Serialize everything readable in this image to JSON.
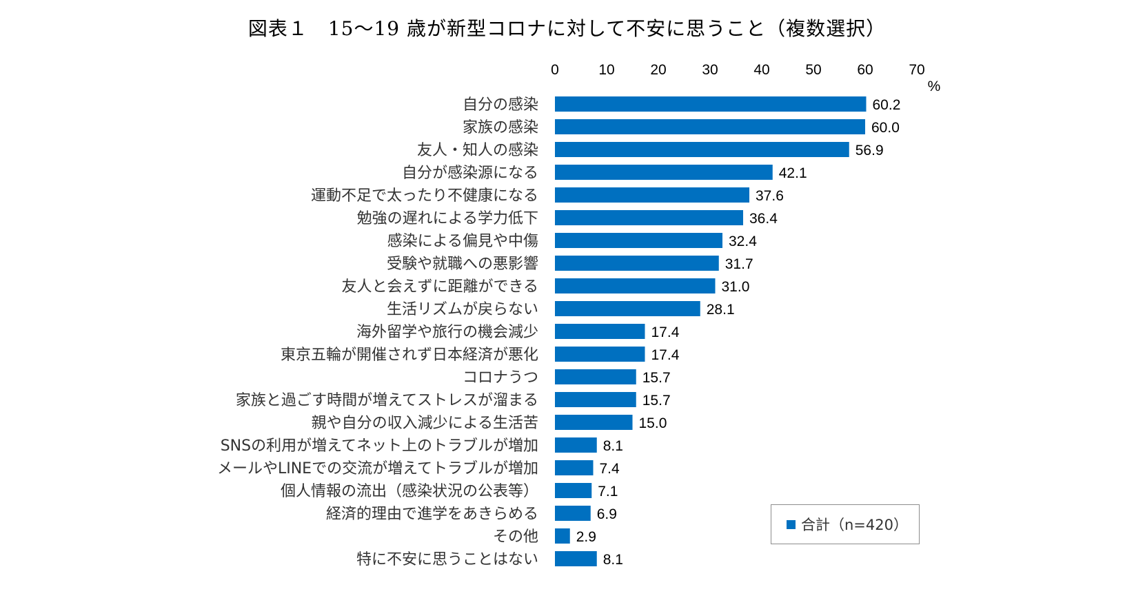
{
  "page": {
    "title": "図表１　15～19 歳が新型コロナに対して不安に思うこと（複数選択）"
  },
  "chart_data": {
    "type": "bar",
    "orientation": "horizontal",
    "title": "図表１　15～19 歳が新型コロナに対して不安に思うこと（複数選択）",
    "xlabel": "",
    "ylabel": "",
    "unit": "%",
    "xlim": [
      0,
      70
    ],
    "xticks": [
      0,
      10,
      20,
      30,
      40,
      50,
      60,
      70
    ],
    "axis_position": "top",
    "grid": false,
    "legend_position": "bottom-right",
    "bar_color": "#0070c0",
    "categories": [
      "自分の感染",
      "家族の感染",
      "友人・知人の感染",
      "自分が感染源になる",
      "運動不足で太ったり不健康になる",
      "勉強の遅れによる学力低下",
      "感染による偏見や中傷",
      "受験や就職への悪影響",
      "友人と会えずに距離ができる",
      "生活リズムが戻らない",
      "海外留学や旅行の機会減少",
      "東京五輪が開催されず日本経済が悪化",
      "コロナうつ",
      "家族と過ごす時間が増えてストレスが溜まる",
      "親や自分の収入減少による生活苦",
      "SNSの利用が増えてネット上のトラブルが増加",
      "メールやLINEでの交流が増えてトラブルが増加",
      "個人情報の流出（感染状況の公表等）",
      "経済的理由で進学をあきらめる",
      "その他",
      "特に不安に思うことはない"
    ],
    "series": [
      {
        "name": "合計（n=420）",
        "values": [
          60.2,
          60.0,
          56.9,
          42.1,
          37.6,
          36.4,
          32.4,
          31.7,
          31.0,
          28.1,
          17.4,
          17.4,
          15.7,
          15.7,
          15.0,
          8.1,
          7.4,
          7.1,
          6.9,
          2.9,
          8.1
        ],
        "labels": [
          "60.2",
          "60.0",
          "56.9",
          "42.1",
          "37.6",
          "36.4",
          "32.4",
          "31.7",
          "31.0",
          "28.1",
          "17.4",
          "17.4",
          "15.7",
          "15.7",
          "15.0",
          "8.1",
          "7.4",
          "7.1",
          "6.9",
          "2.9",
          "8.1"
        ]
      }
    ]
  }
}
